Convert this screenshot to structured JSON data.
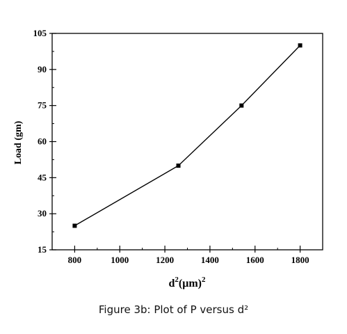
{
  "caption": "Figure 3b: Plot of P versus d²",
  "chart_data": {
    "type": "line",
    "title": "",
    "xlabel_base": "d",
    "xlabel_sup1": "2",
    "xlabel_mid": "(μm)",
    "xlabel_sup2": "2",
    "ylabel": "Load (gm)",
    "xlim": [
      700,
      1900
    ],
    "ylim": [
      15,
      105
    ],
    "xticks": [
      800,
      1000,
      1200,
      1400,
      1600,
      1800
    ],
    "yticks": [
      15,
      30,
      45,
      60,
      75,
      90,
      105
    ],
    "grid": false,
    "series": [
      {
        "x": [
          800,
          1260,
          1540,
          1800
        ],
        "y": [
          25,
          50,
          75,
          100
        ]
      }
    ],
    "colors": {
      "line": "#000000",
      "marker": "#000000",
      "axis": "#000000"
    }
  }
}
